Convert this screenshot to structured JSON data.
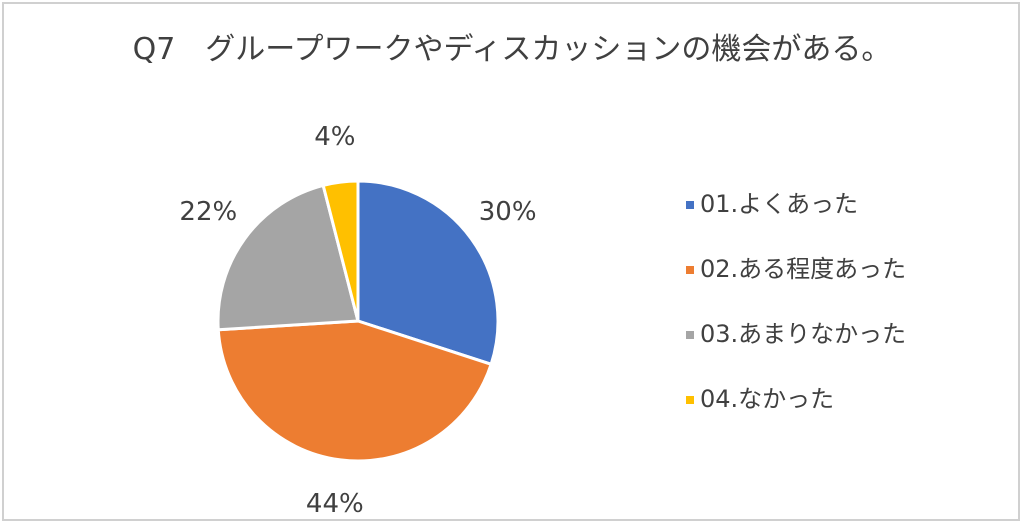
{
  "chart_data": {
    "type": "pie",
    "title": "Q7　グループワークやディスカッションの機会がある。",
    "categories": [
      "01.よくあった",
      "02.ある程度あった",
      "03.あまりなかった",
      "04.なかった"
    ],
    "values": [
      30,
      44,
      22,
      4
    ],
    "value_labels": [
      "30%",
      "44%",
      "22%",
      "4%"
    ],
    "colors": [
      "#4472c4",
      "#ed7d31",
      "#a5a5a5",
      "#ffc000"
    ],
    "legend": "right"
  }
}
